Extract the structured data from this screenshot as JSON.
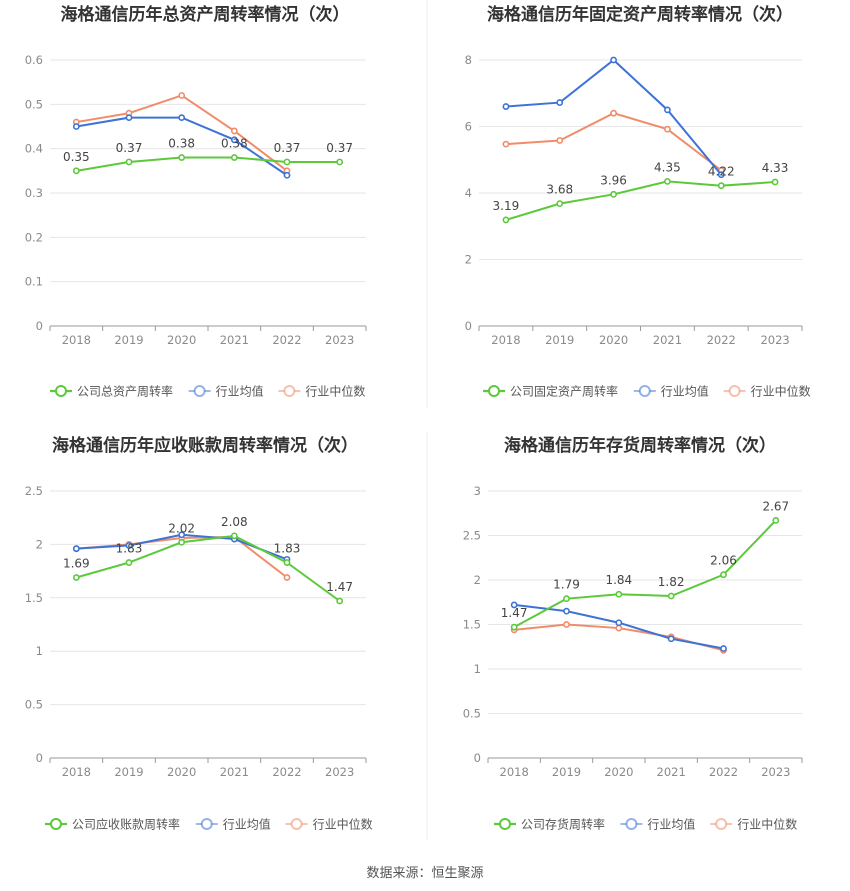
{
  "colors": {
    "company": "#5cc93b",
    "industry_avg": "#3d73d6",
    "industry_median": "#f08c69",
    "grid": "#e6e6e6",
    "axis_text": "#8a8a8a",
    "title": "#333333",
    "label": "#444444"
  },
  "source": "数据来源：恒生聚源",
  "chart_data": [
    {
      "type": "line",
      "title": "海格通信历年总资产周转率情况（次）",
      "categories": [
        "2018",
        "2019",
        "2020",
        "2021",
        "2022",
        "2023"
      ],
      "yticks": [
        "0",
        "0.1",
        "0.2",
        "0.3",
        "0.4",
        "0.5",
        "0.6"
      ],
      "ylim": [
        0,
        0.6
      ],
      "legend": [
        "公司总资产周转率",
        "行业均值",
        "行业中位数"
      ],
      "series": [
        {
          "name": "公司总资产周转率",
          "role": "company",
          "values": [
            0.35,
            0.37,
            0.38,
            0.38,
            0.37,
            0.37
          ],
          "labels": [
            "0.35",
            "0.37",
            "0.38",
            "0.38",
            "0.37",
            "0.37"
          ]
        },
        {
          "name": "行业均值",
          "role": "industry_avg",
          "values": [
            0.45,
            0.47,
            0.47,
            0.42,
            0.34,
            null
          ]
        },
        {
          "name": "行业中位数",
          "role": "industry_median",
          "values": [
            0.46,
            0.48,
            0.52,
            0.44,
            0.35,
            null
          ]
        }
      ]
    },
    {
      "type": "line",
      "title": "海格通信历年固定资产周转率情况（次）",
      "categories": [
        "2018",
        "2019",
        "2020",
        "2021",
        "2022",
        "2023"
      ],
      "yticks": [
        "0",
        "2",
        "4",
        "6",
        "8"
      ],
      "ylim": [
        0,
        8
      ],
      "legend": [
        "公司固定资产周转率",
        "行业均值",
        "行业中位数"
      ],
      "series": [
        {
          "name": "公司固定资产周转率",
          "role": "company",
          "values": [
            3.19,
            3.68,
            3.96,
            4.35,
            4.22,
            4.33
          ],
          "labels": [
            "3.19",
            "3.68",
            "3.96",
            "4.35",
            "4.22",
            "4.33"
          ]
        },
        {
          "name": "行业均值",
          "role": "industry_avg",
          "values": [
            6.6,
            6.72,
            8.0,
            6.5,
            4.55,
            null
          ]
        },
        {
          "name": "行业中位数",
          "role": "industry_median",
          "values": [
            5.47,
            5.58,
            6.4,
            5.92,
            4.68,
            null
          ]
        }
      ]
    },
    {
      "type": "line",
      "title": "海格通信历年应收账款周转率情况（次）",
      "categories": [
        "2018",
        "2019",
        "2020",
        "2021",
        "2022",
        "2023"
      ],
      "yticks": [
        "0",
        "0.5",
        "1",
        "1.5",
        "2",
        "2.5"
      ],
      "ylim": [
        0,
        2.5
      ],
      "legend": [
        "公司应收账款周转率",
        "行业均值",
        "行业中位数"
      ],
      "series": [
        {
          "name": "公司应收账款周转率",
          "role": "company",
          "values": [
            1.69,
            1.83,
            2.02,
            2.08,
            1.83,
            1.47
          ],
          "labels": [
            "1.69",
            "1.83",
            "2.02",
            "2.08",
            "1.83",
            "1.47"
          ]
        },
        {
          "name": "行业均值",
          "role": "industry_avg",
          "values": [
            1.96,
            1.99,
            2.09,
            2.05,
            1.86,
            null
          ]
        },
        {
          "name": "行业中位数",
          "role": "industry_median",
          "values": [
            1.96,
            2.0,
            2.06,
            2.07,
            1.69,
            null
          ]
        }
      ]
    },
    {
      "type": "line",
      "title": "海格通信历年存货周转率情况（次）",
      "categories": [
        "2018",
        "2019",
        "2020",
        "2021",
        "2022",
        "2023"
      ],
      "yticks": [
        "0",
        "0.5",
        "1",
        "1.5",
        "2",
        "2.5",
        "3"
      ],
      "ylim": [
        0,
        3
      ],
      "legend": [
        "公司存货周转率",
        "行业均值",
        "行业中位数"
      ],
      "series": [
        {
          "name": "公司存货周转率",
          "role": "company",
          "values": [
            1.47,
            1.79,
            1.84,
            1.82,
            2.06,
            2.67
          ],
          "labels": [
            "1.47",
            "1.79",
            "1.84",
            "1.82",
            "2.06",
            "2.67"
          ]
        },
        {
          "name": "行业均值",
          "role": "industry_avg",
          "values": [
            1.72,
            1.65,
            1.52,
            1.34,
            1.23,
            null
          ]
        },
        {
          "name": "行业中位数",
          "role": "industry_median",
          "values": [
            1.44,
            1.5,
            1.46,
            1.36,
            1.21,
            null
          ]
        }
      ]
    }
  ]
}
